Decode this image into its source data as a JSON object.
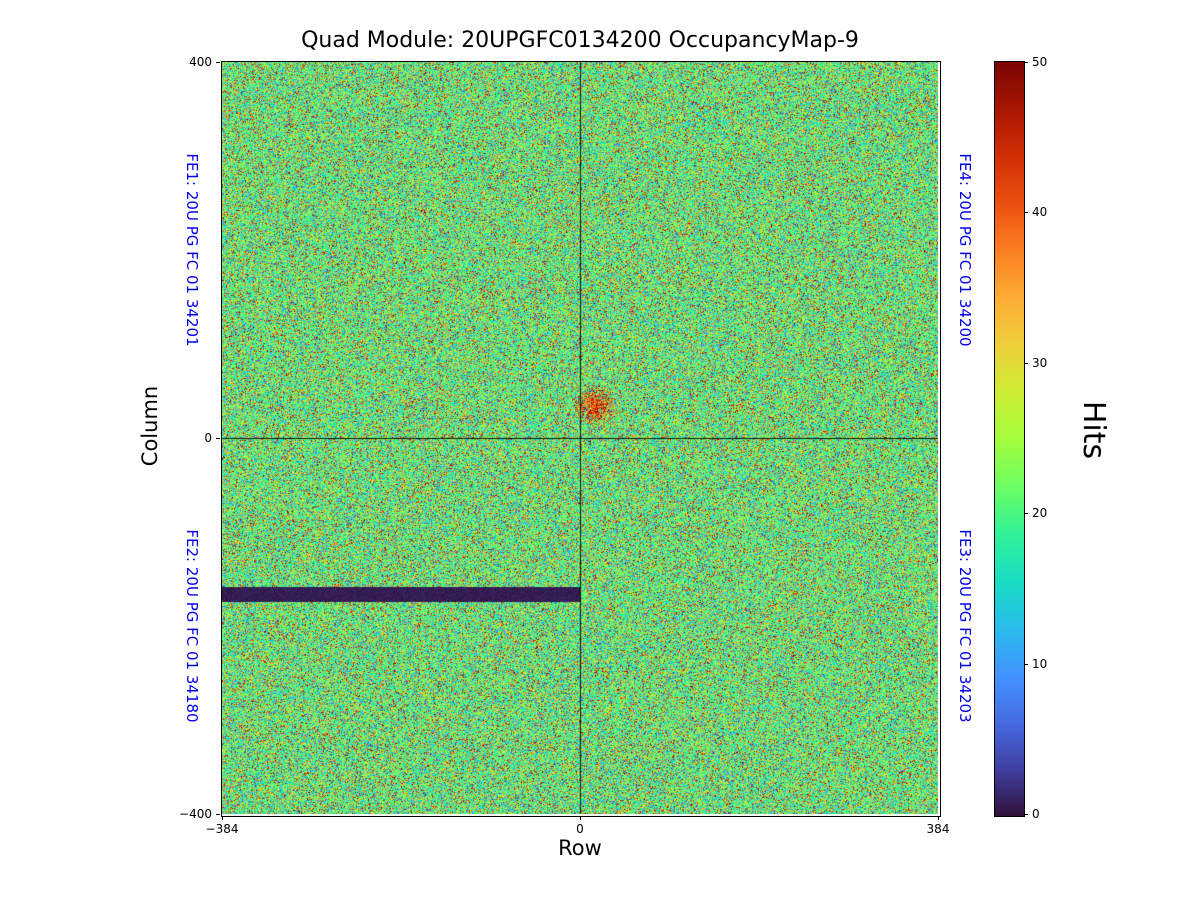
{
  "title": "Quad Module: 20UPGFC0134200 OccupancyMap-9",
  "axes": {
    "xlabel": "Row",
    "ylabel": "Column",
    "xlim": [
      -384,
      384
    ],
    "ylim": [
      -400,
      400
    ],
    "x_ticks": [
      {
        "label": "−384",
        "value": -384
      },
      {
        "label": "0",
        "value": 0
      },
      {
        "label": "384",
        "value": 384
      }
    ],
    "y_ticks": [
      {
        "label": "400",
        "value": 400
      },
      {
        "label": "0",
        "value": 0
      },
      {
        "label": "−400",
        "value": -400
      }
    ]
  },
  "colorbar": {
    "label": "Hits",
    "min": 0,
    "max": 50,
    "ticks": [
      {
        "label": "0",
        "value": 0
      },
      {
        "label": "10",
        "value": 10
      },
      {
        "label": "20",
        "value": 20
      },
      {
        "label": "30",
        "value": 30
      },
      {
        "label": "40",
        "value": 40
      },
      {
        "label": "50",
        "value": 50
      }
    ]
  },
  "fe_labels": {
    "fe1": "FE1: 20U PG FC 01 34201",
    "fe2": "FE2: 20U PG FC 01 34180",
    "fe3": "FE3: 20U PG FC 01 34203",
    "fe4": "FE4: 20U PG FC 01 34200"
  },
  "colors": {
    "fe_label_blue": "#0000ee",
    "axis_black": "#000000",
    "figure_background": "#ffffff"
  },
  "chart_data": {
    "type": "heatmap",
    "title": "Quad Module: 20UPGFC0134200 OccupancyMap-9",
    "xlabel": "Row",
    "ylabel": "Column",
    "xlim": [
      -384,
      384
    ],
    "ylim": [
      -400,
      400
    ],
    "x_tick_values": [
      -384,
      0,
      384
    ],
    "y_tick_values": [
      -400,
      0,
      400
    ],
    "value_label": "Hits",
    "value_range": [
      0,
      50
    ],
    "colorbar_tick_values": [
      0,
      10,
      20,
      30,
      40,
      50
    ],
    "colormap": "turbo",
    "colormap_stops": [
      [
        0.0,
        "#30123b"
      ],
      [
        0.0625,
        "#4040a2"
      ],
      [
        0.125,
        "#466be3"
      ],
      [
        0.1875,
        "#4294ff"
      ],
      [
        0.25,
        "#28bceb"
      ],
      [
        0.3125,
        "#18ddc2"
      ],
      [
        0.375,
        "#32f298"
      ],
      [
        0.4375,
        "#6dfe62"
      ],
      [
        0.5,
        "#a4fc3c"
      ],
      [
        0.5625,
        "#cdec34"
      ],
      [
        0.625,
        "#eecf3a"
      ],
      [
        0.6875,
        "#fdac34"
      ],
      [
        0.75,
        "#fb7e21"
      ],
      [
        0.8125,
        "#eb500e"
      ],
      [
        0.875,
        "#d02f05"
      ],
      [
        0.9375,
        "#a91601"
      ],
      [
        1.0,
        "#7a0403"
      ]
    ],
    "background_noise": {
      "description": "per-pixel random occupancy noise, mostly green/teal with cyan and orange-red speckles",
      "mean_hits": 20,
      "std_hits": 4.5,
      "outlier_fraction": 0.45,
      "outlier_hits_range": [
        5,
        50
      ]
    },
    "features": [
      {
        "name": "dead-row-band",
        "description": "zero-hit horizontal band in FE2 (lower-left) quadrant spanning the full left half",
        "row_range": [
          -384,
          0
        ],
        "column_range": [
          -174,
          -159
        ],
        "hits": 0
      },
      {
        "name": "hotspot-cluster",
        "description": "dense high-occupancy circular cluster just right of and above the quadrant centre",
        "row_center": 16,
        "column_center": 35,
        "radius": 21,
        "hits_range": [
          33,
          50
        ]
      },
      {
        "name": "quadrant-boundary-lines",
        "description": "thin black divider lines",
        "row": 0,
        "column": 0
      }
    ],
    "quadrants": [
      {
        "position": "top-left",
        "frontend": "FE1",
        "label": "FE1: 20U PG FC 01 34201"
      },
      {
        "position": "bottom-left",
        "frontend": "FE2",
        "label": "FE2: 20U PG FC 01 34180"
      },
      {
        "position": "top-right",
        "frontend": "FE4",
        "label": "FE4: 20U PG FC 01 34200"
      },
      {
        "position": "bottom-right",
        "frontend": "FE3",
        "label": "FE3: 20U PG FC 01 34203"
      }
    ],
    "legend_position": "right-colorbar",
    "grid": false
  }
}
